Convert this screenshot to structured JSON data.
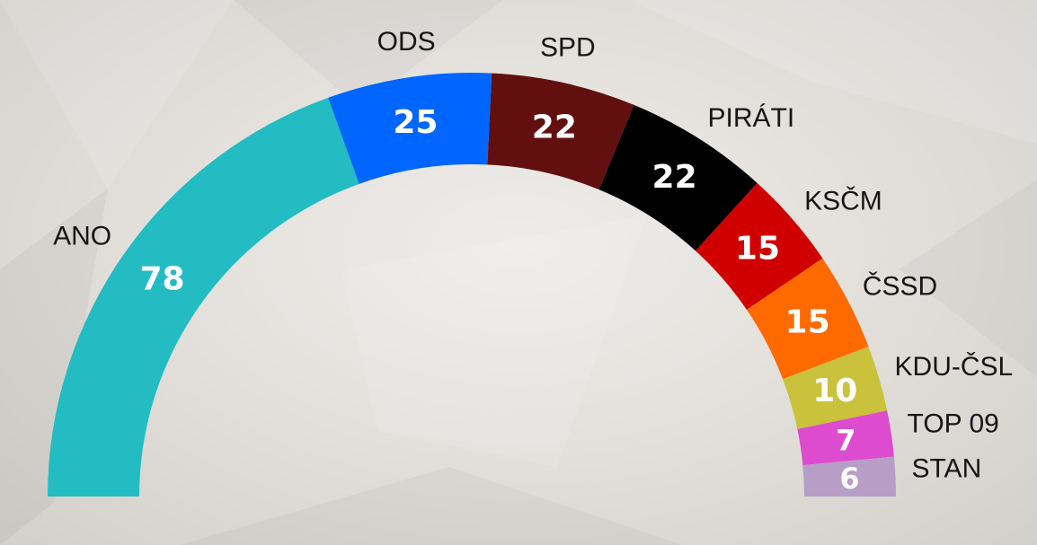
{
  "chart_data": {
    "type": "pie",
    "variant": "half-donut (parliament seats)",
    "total": 200,
    "order": "counter-clockwise from bottom-left to bottom-right",
    "parties": [
      {
        "name": "ANO",
        "seats": 78,
        "color": "#22bcc2"
      },
      {
        "name": "ODS",
        "seats": 25,
        "color": "#0066ff"
      },
      {
        "name": "SPD",
        "seats": 22,
        "color": "#620f10"
      },
      {
        "name": "PIRÁTI",
        "seats": 22,
        "color": "#000000"
      },
      {
        "name": "KSČM",
        "seats": 15,
        "color": "#d00000"
      },
      {
        "name": "ČSSD",
        "seats": 15,
        "color": "#ff6a00"
      },
      {
        "name": "KDU-ČSL",
        "seats": 10,
        "color": "#c9c23a"
      },
      {
        "name": "TOP 09",
        "seats": 7,
        "color": "#dd4bcf"
      },
      {
        "name": "STAN",
        "seats": 6,
        "color": "#b69ec6"
      }
    ]
  }
}
